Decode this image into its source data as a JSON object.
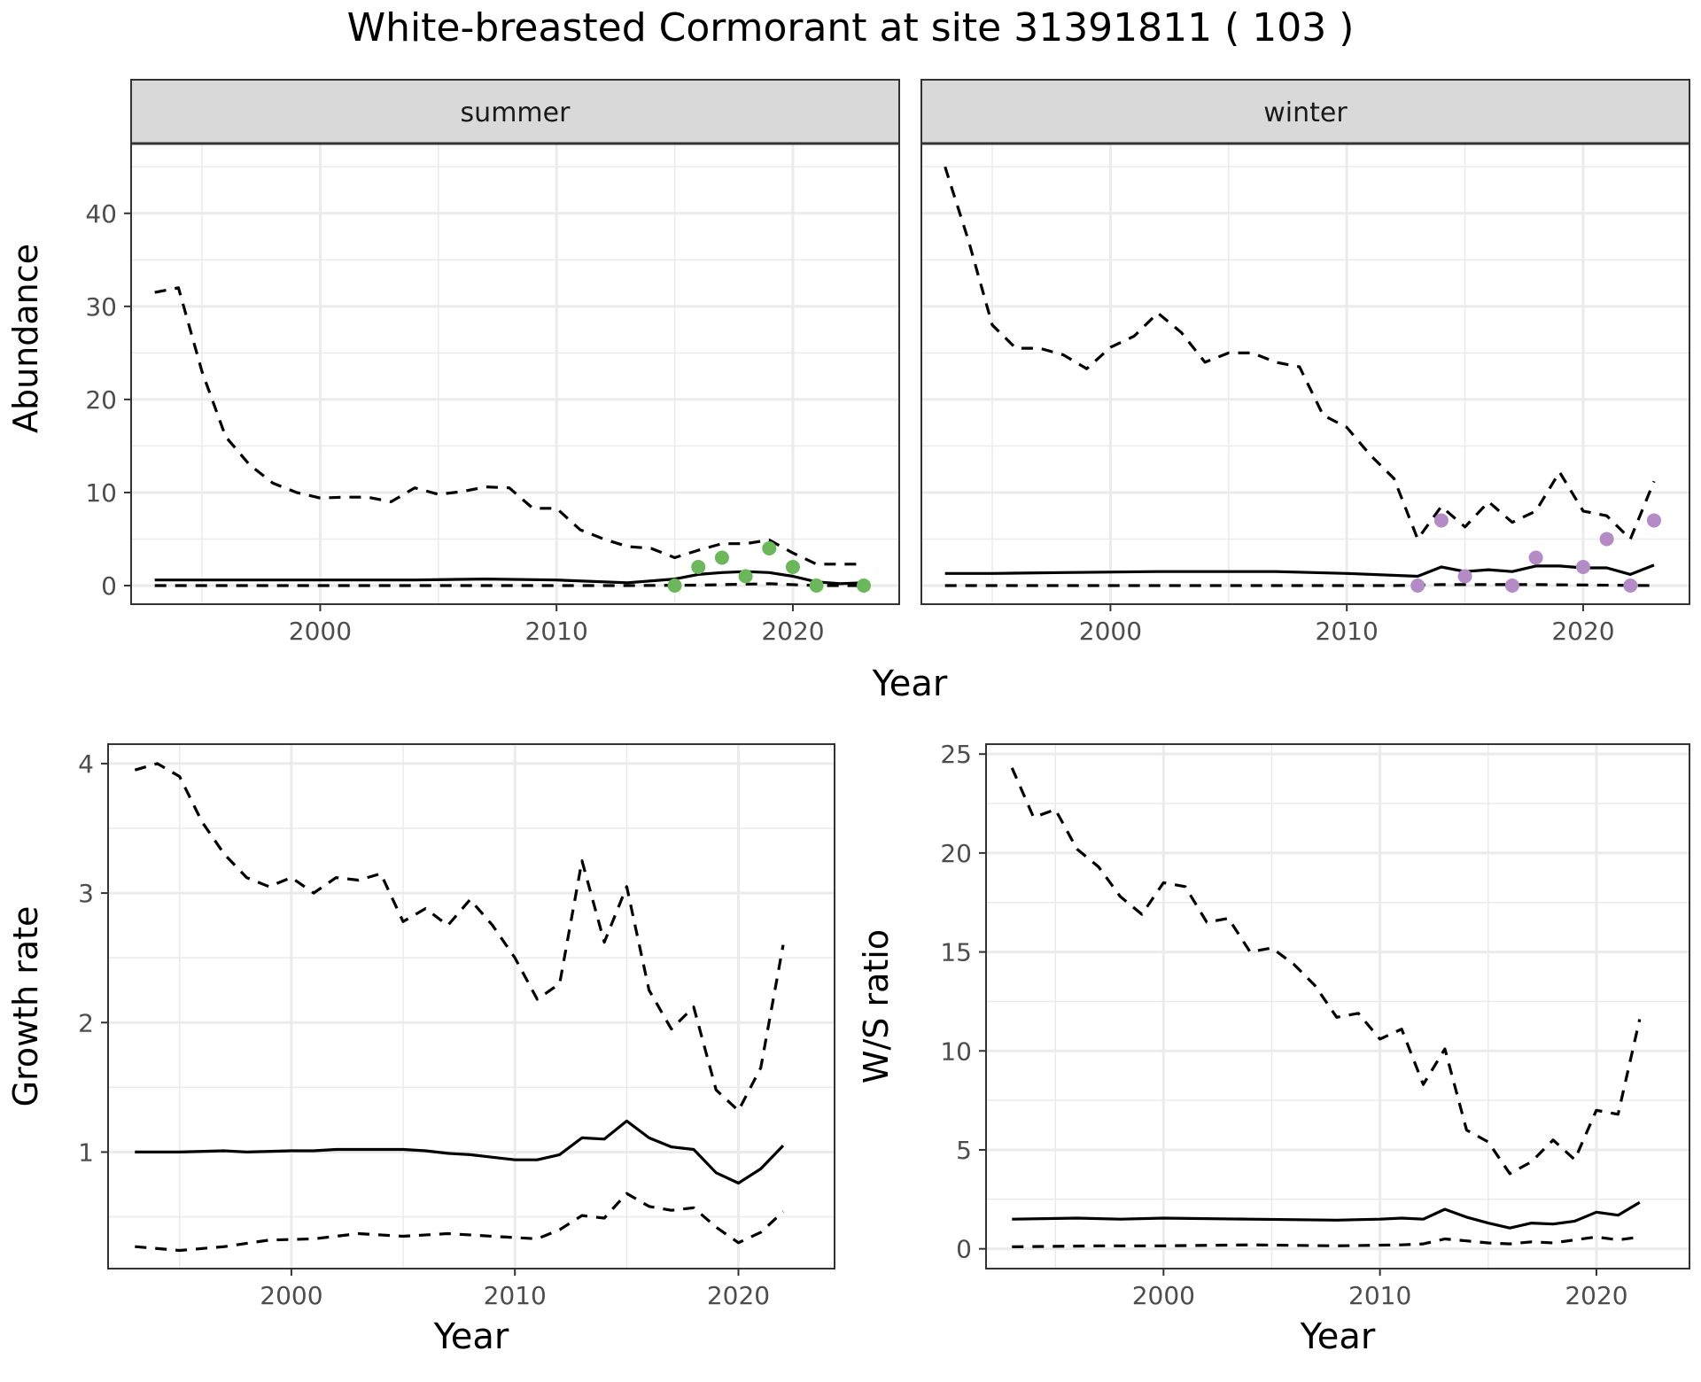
{
  "title": "White-breasted Cormorant at site 31391811 ( 103 )",
  "colors": {
    "summer_points": "#6ab85a",
    "winter_points": "#b58bc7",
    "line": "#000000",
    "strip": "#d9d9d9",
    "grid": "#ebebeb"
  },
  "chart_data": [
    {
      "type": "line",
      "facet": "summer",
      "xlabel": "Year",
      "ylabel": "Abundance",
      "xlim": [
        1992,
        2024.5
      ],
      "ylim": [
        -2,
        47.5
      ],
      "xticks": [
        2000,
        2010,
        2020
      ],
      "yticks": [
        0,
        10,
        20,
        30,
        40
      ],
      "grid": true,
      "series": [
        {
          "style": "solid",
          "x": [
            1993,
            1996,
            2000,
            2004,
            2007,
            2010,
            2013,
            2015,
            2016,
            2017,
            2018,
            2019,
            2020,
            2021,
            2022,
            2023
          ],
          "y": [
            0.6,
            0.6,
            0.6,
            0.6,
            0.7,
            0.6,
            0.3,
            0.7,
            1.2,
            1.4,
            1.5,
            1.4,
            1.0,
            0.4,
            0.2,
            0.3
          ]
        },
        {
          "style": "dashed",
          "x": [
            1993,
            1994,
            1995,
            1996,
            1997,
            1998,
            1999,
            2000,
            2001,
            2002,
            2003,
            2004,
            2005,
            2006,
            2007,
            2008,
            2009,
            2010,
            2011,
            2012,
            2013,
            2014,
            2015,
            2016,
            2017,
            2018,
            2019,
            2020,
            2021,
            2022,
            2023
          ],
          "y": [
            31.5,
            32,
            23,
            16,
            13,
            11,
            10,
            9.4,
            9.5,
            9.5,
            9,
            10.5,
            9.8,
            10.1,
            10.6,
            10.5,
            8.3,
            8.3,
            6,
            5,
            4.2,
            4,
            3,
            3.8,
            4.5,
            4.5,
            4.9,
            3.5,
            2.3,
            2.3,
            2.3
          ]
        },
        {
          "style": "dashed",
          "x": [
            1993,
            2010,
            2013,
            2016,
            2019,
            2021,
            2023
          ],
          "y": [
            0,
            0,
            0,
            0.05,
            0.2,
            0,
            0
          ]
        }
      ],
      "points": {
        "x": [
          2015,
          2016,
          2017,
          2018,
          2019,
          2020,
          2021,
          2023
        ],
        "y": [
          0,
          2,
          3,
          1,
          4,
          2,
          0,
          0
        ]
      }
    },
    {
      "type": "line",
      "facet": "winter",
      "xlabel": "Year",
      "ylabel": "Abundance",
      "xlim": [
        1992,
        2024.5
      ],
      "ylim": [
        -2,
        47.5
      ],
      "xticks": [
        2000,
        2010,
        2020
      ],
      "yticks": [
        0,
        10,
        20,
        30,
        40
      ],
      "grid": true,
      "series": [
        {
          "style": "solid",
          "x": [
            1993,
            1995,
            1998,
            2002,
            2007,
            2010,
            2013,
            2014,
            2015,
            2016,
            2017,
            2018,
            2019,
            2020,
            2021,
            2022,
            2023
          ],
          "y": [
            1.3,
            1.3,
            1.4,
            1.5,
            1.5,
            1.3,
            1.0,
            2.0,
            1.5,
            1.7,
            1.5,
            2.1,
            2.1,
            1.9,
            1.9,
            1.2,
            2.2
          ]
        },
        {
          "style": "dashed",
          "x": [
            1993,
            1994,
            1995,
            1996,
            1997,
            1998,
            1999,
            2000,
            2001,
            2002,
            2003,
            2004,
            2005,
            2006,
            2007,
            2008,
            2009,
            2010,
            2011,
            2012,
            2013,
            2014,
            2015,
            2016,
            2017,
            2018,
            2019,
            2020,
            2021,
            2022,
            2023
          ],
          "y": [
            45,
            37,
            28,
            25.5,
            25.5,
            24.8,
            23.3,
            25.6,
            26.8,
            29.3,
            27.2,
            24,
            25,
            25,
            24,
            23.5,
            18.3,
            17,
            14,
            11.5,
            5,
            8.5,
            6.3,
            9,
            6.8,
            8,
            12.2,
            8,
            7.5,
            5,
            11.2
          ]
        },
        {
          "style": "dashed",
          "x": [
            1993,
            2012,
            2014,
            2018,
            2023
          ],
          "y": [
            0,
            0,
            0.1,
            0.1,
            0
          ]
        }
      ],
      "points": {
        "x": [
          2013,
          2014,
          2015,
          2017,
          2018,
          2020,
          2021,
          2022,
          2023
        ],
        "y": [
          0,
          7,
          1,
          0,
          3,
          2,
          5,
          0,
          7
        ]
      }
    },
    {
      "type": "line",
      "xlabel": "Year",
      "ylabel": "Growth rate",
      "xlim": [
        1991.8,
        2024.3
      ],
      "ylim": [
        0.1,
        4.15
      ],
      "xticks": [
        2000,
        2010,
        2020
      ],
      "yticks": [
        1,
        2,
        3,
        4
      ],
      "grid": true,
      "series": [
        {
          "style": "solid",
          "x": [
            1993,
            1995,
            1997,
            1998,
            2000,
            2001,
            2002,
            2003,
            2005,
            2006,
            2007,
            2008,
            2009,
            2010,
            2011,
            2012,
            2013,
            2014,
            2015,
            2016,
            2017,
            2018,
            2019,
            2020,
            2021,
            2022
          ],
          "y": [
            1.0,
            1.0,
            1.01,
            1.0,
            1.01,
            1.01,
            1.02,
            1.02,
            1.02,
            1.01,
            0.99,
            0.98,
            0.96,
            0.94,
            0.94,
            0.98,
            1.11,
            1.1,
            1.24,
            1.11,
            1.04,
            1.02,
            0.84,
            0.76,
            0.87,
            1.05
          ]
        },
        {
          "style": "dashed",
          "x": [
            1993,
            1994,
            1995,
            1996,
            1997,
            1998,
            1999,
            2000,
            2001,
            2002,
            2003,
            2004,
            2005,
            2006,
            2007,
            2008,
            2009,
            2010,
            2011,
            2012,
            2013,
            2014,
            2015,
            2016,
            2017,
            2018,
            2019,
            2020,
            2021,
            2022
          ],
          "y": [
            3.95,
            4.0,
            3.9,
            3.55,
            3.3,
            3.12,
            3.05,
            3.12,
            3.0,
            3.12,
            3.1,
            3.15,
            2.78,
            2.88,
            2.75,
            2.95,
            2.75,
            2.5,
            2.18,
            2.3,
            3.25,
            2.62,
            3.05,
            2.25,
            1.95,
            2.12,
            1.48,
            1.32,
            1.65,
            2.6
          ]
        },
        {
          "style": "dashed",
          "x": [
            1993,
            1995,
            1997,
            1999,
            2001,
            2003,
            2005,
            2007,
            2009,
            2011,
            2012,
            2013,
            2014,
            2015,
            2016,
            2017,
            2018,
            2019,
            2020,
            2021,
            2022
          ],
          "y": [
            0.27,
            0.24,
            0.27,
            0.32,
            0.33,
            0.37,
            0.35,
            0.37,
            0.35,
            0.33,
            0.4,
            0.51,
            0.49,
            0.68,
            0.58,
            0.55,
            0.57,
            0.42,
            0.3,
            0.38,
            0.54
          ]
        }
      ]
    },
    {
      "type": "line",
      "xlabel": "Year",
      "ylabel": "W/S ratio",
      "xlim": [
        1991.8,
        2024.3
      ],
      "ylim": [
        -1,
        25.5
      ],
      "xticks": [
        2000,
        2010,
        2020
      ],
      "yticks": [
        0,
        5,
        10,
        15,
        20,
        25
      ],
      "grid": true,
      "series": [
        {
          "style": "solid",
          "x": [
            1993,
            1996,
            1998,
            2000,
            2004,
            2008,
            2010,
            2011,
            2012,
            2013,
            2014,
            2015,
            2016,
            2017,
            2018,
            2019,
            2020,
            2021,
            2022
          ],
          "y": [
            1.5,
            1.55,
            1.5,
            1.55,
            1.5,
            1.45,
            1.5,
            1.55,
            1.5,
            2.0,
            1.6,
            1.3,
            1.05,
            1.3,
            1.25,
            1.4,
            1.85,
            1.7,
            2.35
          ]
        },
        {
          "style": "dashed",
          "x": [
            1993,
            1994,
            1995,
            1996,
            1997,
            1998,
            1999,
            2000,
            2001,
            2002,
            2003,
            2004,
            2005,
            2006,
            2007,
            2008,
            2009,
            2010,
            2011,
            2012,
            2013,
            2014,
            2015,
            2016,
            2017,
            2018,
            2019,
            2020,
            2021,
            2022
          ],
          "y": [
            24.3,
            21.8,
            22.2,
            20.2,
            19.3,
            17.8,
            16.9,
            18.5,
            18.3,
            16.5,
            16.7,
            15.0,
            15.2,
            14.4,
            13.3,
            11.7,
            11.9,
            10.6,
            11.1,
            8.3,
            10.1,
            6.0,
            5.4,
            3.8,
            4.4,
            5.5,
            4.5,
            7.0,
            6.8,
            11.6
          ]
        },
        {
          "style": "dashed",
          "x": [
            1993,
            1997,
            2000,
            2004,
            2008,
            2011,
            2012,
            2013,
            2014,
            2015,
            2016,
            2017,
            2018,
            2019,
            2020,
            2021,
            2022
          ],
          "y": [
            0.1,
            0.15,
            0.15,
            0.2,
            0.15,
            0.2,
            0.25,
            0.5,
            0.4,
            0.3,
            0.25,
            0.35,
            0.3,
            0.45,
            0.6,
            0.45,
            0.6
          ]
        }
      ]
    }
  ]
}
